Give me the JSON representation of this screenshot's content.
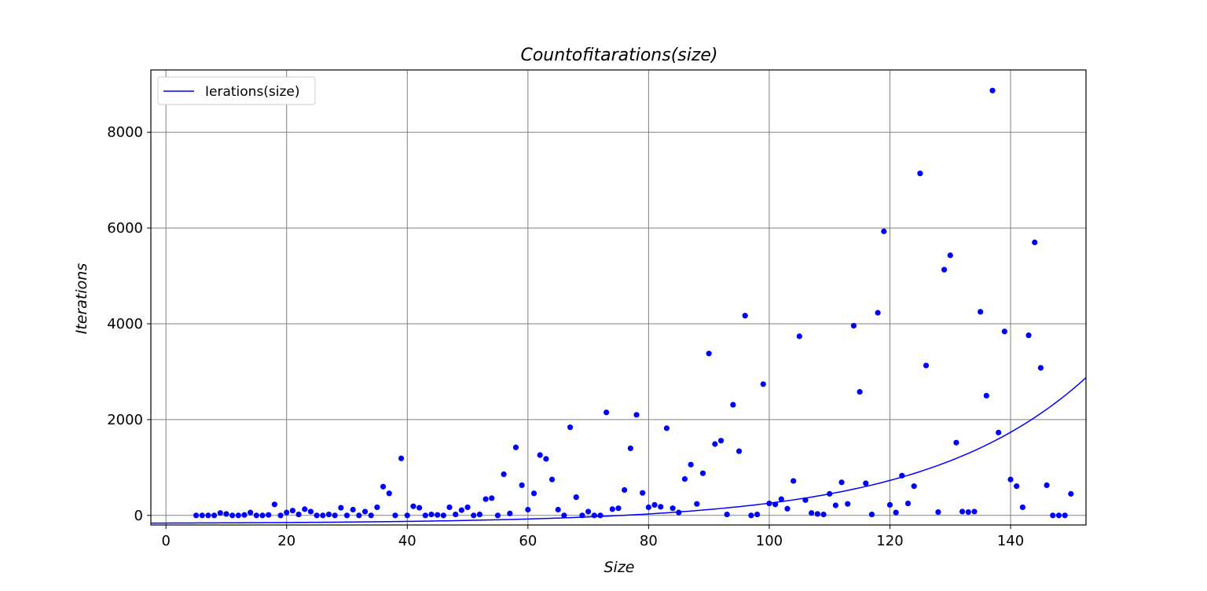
{
  "chart_data": {
    "type": "scatter",
    "title": "Countofitarations(size)",
    "xlabel": "Size",
    "ylabel": "Iterations",
    "xlim": [
      -2.5,
      152.5
    ],
    "ylim": [
      -200,
      9300
    ],
    "xticks": [
      0,
      20,
      40,
      60,
      80,
      100,
      120,
      140
    ],
    "yticks": [
      0,
      2000,
      4000,
      6000,
      8000
    ],
    "grid": true,
    "legend": {
      "position": "top-left",
      "entries": [
        "Ierations(size)"
      ]
    },
    "series": [
      {
        "name": "Ierations(size)",
        "kind": "line",
        "color": "#0000ff",
        "formula": {
          "a": 10,
          "b": 0.0375,
          "c": -170
        },
        "x_range": [
          -2.5,
          152.5
        ]
      },
      {
        "kind": "points",
        "color": "#0000ff",
        "points": [
          [
            5,
            0
          ],
          [
            6,
            0
          ],
          [
            7,
            0
          ],
          [
            8,
            0
          ],
          [
            9,
            50
          ],
          [
            10,
            30
          ],
          [
            11,
            0
          ],
          [
            12,
            0
          ],
          [
            13,
            10
          ],
          [
            14,
            60
          ],
          [
            15,
            0
          ],
          [
            16,
            0
          ],
          [
            17,
            10
          ],
          [
            18,
            230
          ],
          [
            19,
            0
          ],
          [
            20,
            60
          ],
          [
            21,
            100
          ],
          [
            22,
            20
          ],
          [
            23,
            130
          ],
          [
            24,
            80
          ],
          [
            25,
            0
          ],
          [
            26,
            0
          ],
          [
            27,
            20
          ],
          [
            28,
            0
          ],
          [
            29,
            160
          ],
          [
            30,
            0
          ],
          [
            31,
            120
          ],
          [
            32,
            0
          ],
          [
            33,
            80
          ],
          [
            34,
            0
          ],
          [
            35,
            170
          ],
          [
            36,
            600
          ],
          [
            37,
            460
          ],
          [
            38,
            0
          ],
          [
            39,
            1190
          ],
          [
            40,
            0
          ],
          [
            41,
            190
          ],
          [
            42,
            160
          ],
          [
            43,
            0
          ],
          [
            44,
            20
          ],
          [
            45,
            10
          ],
          [
            46,
            0
          ],
          [
            47,
            170
          ],
          [
            48,
            20
          ],
          [
            49,
            110
          ],
          [
            50,
            170
          ],
          [
            51,
            0
          ],
          [
            52,
            20
          ],
          [
            53,
            340
          ],
          [
            54,
            360
          ],
          [
            55,
            0
          ],
          [
            56,
            860
          ],
          [
            57,
            40
          ],
          [
            58,
            1420
          ],
          [
            59,
            630
          ],
          [
            60,
            120
          ],
          [
            61,
            460
          ],
          [
            62,
            1260
          ],
          [
            63,
            1180
          ],
          [
            64,
            750
          ],
          [
            65,
            120
          ],
          [
            66,
            0
          ],
          [
            67,
            1840
          ],
          [
            68,
            380
          ],
          [
            69,
            0
          ],
          [
            70,
            80
          ],
          [
            71,
            0
          ],
          [
            72,
            0
          ],
          [
            73,
            2150
          ],
          [
            74,
            130
          ],
          [
            75,
            150
          ],
          [
            76,
            530
          ],
          [
            77,
            1400
          ],
          [
            78,
            2100
          ],
          [
            79,
            470
          ],
          [
            80,
            170
          ],
          [
            81,
            220
          ],
          [
            82,
            180
          ],
          [
            83,
            1820
          ],
          [
            84,
            150
          ],
          [
            85,
            60
          ],
          [
            86,
            760
          ],
          [
            87,
            1060
          ],
          [
            88,
            240
          ],
          [
            89,
            880
          ],
          [
            90,
            3380
          ],
          [
            91,
            1490
          ],
          [
            92,
            1560
          ],
          [
            93,
            20
          ],
          [
            94,
            2310
          ],
          [
            95,
            1340
          ],
          [
            96,
            4170
          ],
          [
            97,
            0
          ],
          [
            98,
            20
          ],
          [
            99,
            2740
          ],
          [
            100,
            250
          ],
          [
            101,
            230
          ],
          [
            102,
            340
          ],
          [
            103,
            140
          ],
          [
            104,
            720
          ],
          [
            105,
            3740
          ],
          [
            106,
            320
          ],
          [
            107,
            50
          ],
          [
            108,
            30
          ],
          [
            109,
            20
          ],
          [
            110,
            450
          ],
          [
            111,
            210
          ],
          [
            112,
            690
          ],
          [
            113,
            240
          ],
          [
            114,
            3960
          ],
          [
            115,
            2580
          ],
          [
            116,
            670
          ],
          [
            117,
            20
          ],
          [
            118,
            4230
          ],
          [
            119,
            5930
          ],
          [
            120,
            220
          ],
          [
            121,
            60
          ],
          [
            122,
            830
          ],
          [
            123,
            250
          ],
          [
            124,
            610
          ],
          [
            125,
            7140
          ],
          [
            126,
            3130
          ],
          [
            128,
            70
          ],
          [
            129,
            5130
          ],
          [
            130,
            5430
          ],
          [
            131,
            1520
          ],
          [
            132,
            80
          ],
          [
            133,
            70
          ],
          [
            134,
            80
          ],
          [
            135,
            4250
          ],
          [
            136,
            2500
          ],
          [
            137,
            8870
          ],
          [
            138,
            1730
          ],
          [
            139,
            3840
          ],
          [
            140,
            750
          ],
          [
            141,
            610
          ],
          [
            142,
            170
          ],
          [
            143,
            3760
          ],
          [
            144,
            5700
          ],
          [
            145,
            3080
          ],
          [
            146,
            630
          ],
          [
            147,
            0
          ],
          [
            148,
            0
          ],
          [
            149,
            0
          ],
          [
            150,
            450
          ]
        ]
      }
    ]
  }
}
